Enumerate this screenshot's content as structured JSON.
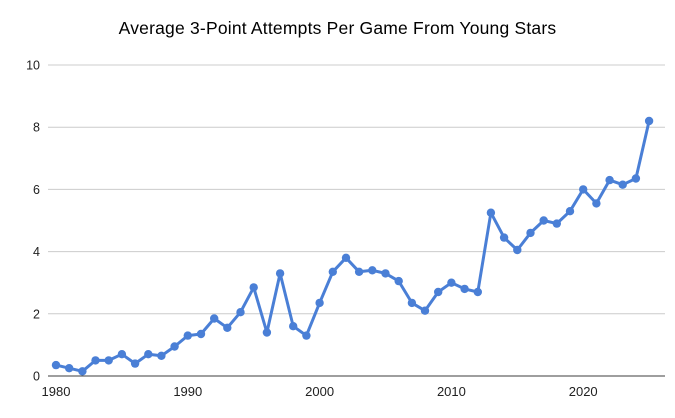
{
  "chart_data": {
    "type": "line",
    "title": "Average 3-Point Attempts Per Game From Young Stars",
    "xlabel": "",
    "ylabel": "",
    "x": [
      1980,
      1981,
      1982,
      1983,
      1984,
      1985,
      1986,
      1987,
      1988,
      1989,
      1990,
      1991,
      1992,
      1993,
      1994,
      1995,
      1996,
      1997,
      1998,
      1999,
      2000,
      2001,
      2002,
      2003,
      2004,
      2005,
      2006,
      2007,
      2008,
      2009,
      2010,
      2011,
      2012,
      2013,
      2014,
      2015,
      2016,
      2017,
      2018,
      2019,
      2020,
      2021,
      2022,
      2023,
      2024,
      2025
    ],
    "series": [
      {
        "name": "Average 3-Point Attempts Per Game",
        "values": [
          0.35,
          0.25,
          0.15,
          0.5,
          0.5,
          0.7,
          0.4,
          0.7,
          0.65,
          0.95,
          1.3,
          1.35,
          1.85,
          1.55,
          2.05,
          2.85,
          1.4,
          3.3,
          1.6,
          1.3,
          2.35,
          3.35,
          3.8,
          3.35,
          3.4,
          3.3,
          3.05,
          2.35,
          2.1,
          2.7,
          3.0,
          2.8,
          2.7,
          5.25,
          4.45,
          4.05,
          4.6,
          5.0,
          4.9,
          5.3,
          6.0,
          5.55,
          6.3,
          6.15,
          6.35,
          8.2
        ]
      }
    ],
    "ylim": [
      0,
      10
    ],
    "yticks": [
      0,
      2,
      4,
      6,
      8,
      10
    ],
    "xticks": [
      1980,
      1990,
      2000,
      2010,
      2020
    ],
    "grid": "horizontal-only",
    "legend": "none",
    "colors": {
      "line": "#4a7fd6",
      "marker": "#4a7fd6",
      "gridline": "#cccccc",
      "baseline": "#3c3c3c",
      "tick_label": "#212121",
      "background": "#ffffff"
    }
  }
}
